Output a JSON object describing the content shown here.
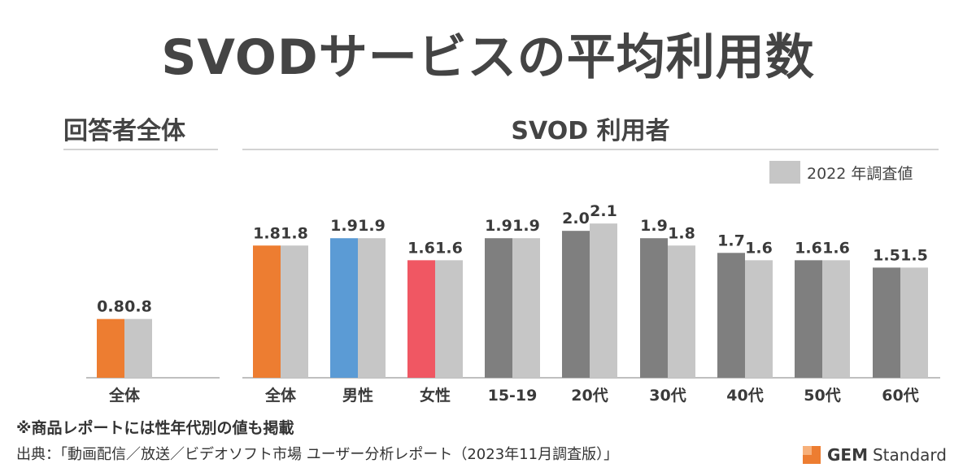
{
  "title": "SVODサービスの平均利用数",
  "sections": {
    "left": "回答者全体",
    "right": "SVOD 利用者"
  },
  "legend": {
    "label": "2022 年調査値",
    "color": "#c6c6c6"
  },
  "note": "※商品レポートには性年代別の値も掲載",
  "source": "出典：「動画配信／放送／ビデオソフト市場 ユーザー分析レポート（2023年11月調査版）」",
  "logo": {
    "gem": "GEM",
    "standard": "Standard",
    "color": "#ed7d31"
  },
  "chart_data": {
    "type": "bar",
    "ylim": [
      0,
      2.4
    ],
    "series": [
      {
        "name": "2023年11月調査",
        "values": [
          0.8,
          1.8,
          1.9,
          1.6,
          1.9,
          2.0,
          1.9,
          1.7,
          1.6,
          1.5
        ]
      },
      {
        "name": "2022 年調査値",
        "values": [
          0.8,
          1.8,
          1.9,
          1.6,
          1.9,
          2.1,
          1.8,
          1.6,
          1.6,
          1.5
        ]
      }
    ],
    "categories": [
      "全体",
      "全体",
      "男性",
      "女性",
      "15-19",
      "20代",
      "30代",
      "40代",
      "50代",
      "60代"
    ],
    "groups": [
      "回答者全体",
      "SVOD 利用者",
      "SVOD 利用者",
      "SVOD 利用者",
      "SVOD 利用者",
      "SVOD 利用者",
      "SVOD 利用者",
      "SVOD 利用者",
      "SVOD 利用者",
      "SVOD 利用者"
    ],
    "bar_colors": [
      "#ed7d31",
      "#ed7d31",
      "#5b9bd5",
      "#f05763",
      "#7f7f7f",
      "#7f7f7f",
      "#7f7f7f",
      "#7f7f7f",
      "#7f7f7f",
      "#7f7f7f"
    ],
    "comparison_color": "#c6c6c6"
  }
}
